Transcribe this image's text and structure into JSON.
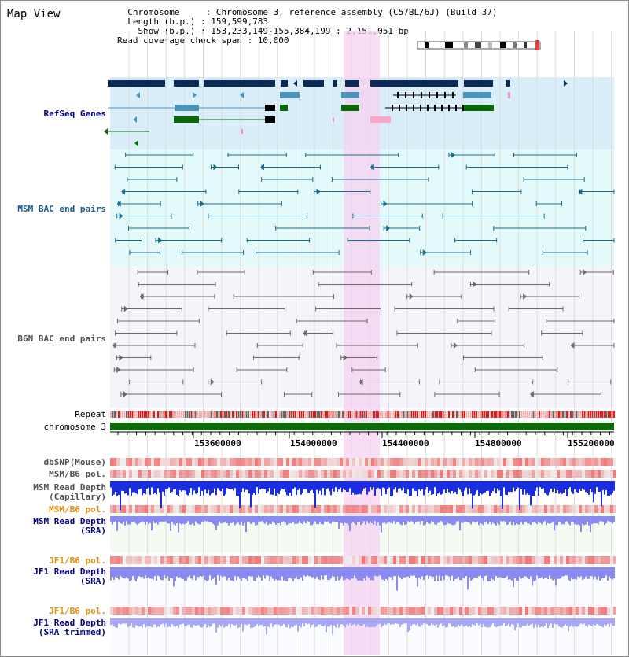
{
  "header": {
    "title": "Map View",
    "info_lines": [
      "  Chromosome     : Chromosome 3, reference assembly (C57BL/6J) (Build 37)",
      "  Length (b.p.) : 159,599,783",
      "    Show (b.p.) : 153,233,149-155,384,199 : 2,151,051 bp",
      "Read coverage check span : 10,000"
    ]
  },
  "tracks": {
    "refseq_label": "RefSeq Genes",
    "msm_bac_label": "MSM BAC end pairs",
    "b6n_bac_label": "B6N BAC end pairs",
    "repeat_label": "Repeat",
    "chromosome_label": "chromosome 3",
    "dbsnp_label": "dbSNP(Mouse)",
    "msm_b6_pol_label": "MSM/B6 pol.",
    "msm_read_depth_cap_label": "MSM Read Depth",
    "msm_read_depth_cap_sub": "(Capillary)",
    "msm_b6_pol2_label": "MSM/B6 pol.",
    "msm_read_depth_sra_label": "MSM Read Depth",
    "msm_read_depth_sra_sub": "(SRA)",
    "jf1_b6_pol_label": "JF1/B6 pol.",
    "jf1_read_depth_sra_label": "JF1 Read Depth",
    "jf1_read_depth_sra_sub": "(SRA)",
    "jf1_b6_pol2_label": "JF1/B6 pol.",
    "jf1_read_depth_trim_label": "JF1 Read Depth",
    "jf1_read_depth_trim_sub": "(SRA trimmed)"
  },
  "axis": {
    "tick_labels": [
      "153600000",
      "154000000",
      "154400000",
      "154800000",
      "155200000"
    ]
  },
  "colors": {
    "refseq_bg": "#d9eef8",
    "msm_bg": "#e4fafa",
    "b6n_bg": "#f4f4fa",
    "highlight": "#f6d2f2",
    "gene_navy": "#0a2a5a",
    "gene_blue": "#4a94bc",
    "gene_green": "#0a6a0a",
    "gene_pink": "#f7a6c8",
    "chromosome_bar": "#0a6a0a",
    "depth_capillary": "#1a2ee0",
    "depth_sra": "#8a8af0"
  }
}
